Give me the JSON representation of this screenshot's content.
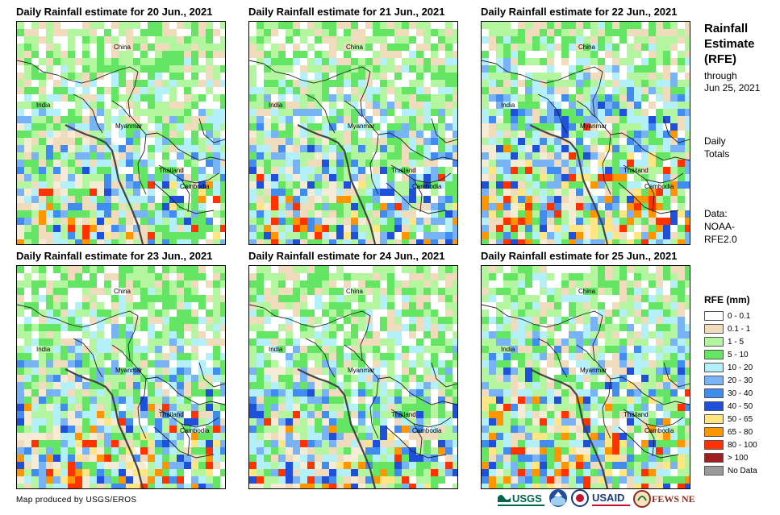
{
  "panels": [
    {
      "title": "Daily Rainfall estimate for 20 Jun., 2021",
      "intensity": 0.55
    },
    {
      "title": "Daily Rainfall estimate for 21 Jun., 2021",
      "intensity": 0.6
    },
    {
      "title": "Daily Rainfall estimate for 22 Jun., 2021",
      "intensity": 0.8
    },
    {
      "title": "Daily Rainfall estimate for 23 Jun., 2021",
      "intensity": 0.65
    },
    {
      "title": "Daily Rainfall estimate for 24 Jun., 2021",
      "intensity": 0.6
    },
    {
      "title": "Daily Rainfall estimate for 25 Jun., 2021",
      "intensity": 0.75
    }
  ],
  "map_labels": {
    "china": "China",
    "india": "India",
    "myanmar": "Myanmar",
    "thailand": "Thailand",
    "cambodia": "Cambodia"
  },
  "sidebar": {
    "title_line1": "Rainfall",
    "title_line2": "Estimate",
    "title_line3": "(RFE)",
    "through": "through",
    "date": "Jun 25, 2021",
    "daily1": "Daily",
    "daily2": "Totals",
    "data1": "Data:",
    "data2": "NOAA-",
    "data3": "RFE2.0"
  },
  "legend": {
    "title": "RFE (mm)",
    "items": [
      {
        "label": "0 - 0.1",
        "color": "#ffffff"
      },
      {
        "label": "0.1 - 1",
        "color": "#f0dcbc"
      },
      {
        "label": "1 - 5",
        "color": "#b4f5a0"
      },
      {
        "label": "5 - 10",
        "color": "#64e664"
      },
      {
        "label": "10 - 20",
        "color": "#b4f0fa"
      },
      {
        "label": "20 - 30",
        "color": "#78b4f5"
      },
      {
        "label": "30 - 40",
        "color": "#418cf0"
      },
      {
        "label": "40 - 50",
        "color": "#1e50dc"
      },
      {
        "label": "50 - 65",
        "color": "#ffe682"
      },
      {
        "label": "65 - 80",
        "color": "#ff9600"
      },
      {
        "label": "80 - 100",
        "color": "#ff3200"
      },
      {
        "label": "> 100",
        "color": "#a01e1e"
      },
      {
        "label": "No Data",
        "color": "#9a9a9a"
      }
    ]
  },
  "credit": "Map produced by USGS/EROS",
  "logos": {
    "usgs": "USGS",
    "usaid": "USAID",
    "fewsnet": "FEWS NET"
  }
}
